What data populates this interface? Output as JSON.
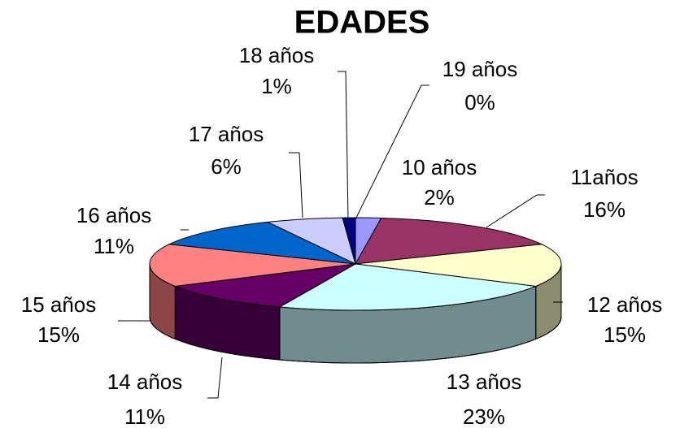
{
  "chart_data": {
    "type": "pie",
    "title": "EDADES",
    "categories": [
      "10 años",
      "11años",
      "12 años",
      "13 años",
      "14 años",
      "15 años",
      "16 años",
      "17 años",
      "18 años",
      "19 años"
    ],
    "values": [
      2,
      16,
      15,
      23,
      11,
      15,
      11,
      6,
      1,
      0
    ],
    "value_labels": [
      "2%",
      "16%",
      "15%",
      "23%",
      "11%",
      "15%",
      "11%",
      "6%",
      "1%",
      "0%"
    ],
    "colors": [
      "#9999ff",
      "#993366",
      "#ffffcc",
      "#ccffff",
      "#660066",
      "#ff8080",
      "#0066cc",
      "#ccccff",
      "#000080",
      "#ff00ff"
    ]
  }
}
